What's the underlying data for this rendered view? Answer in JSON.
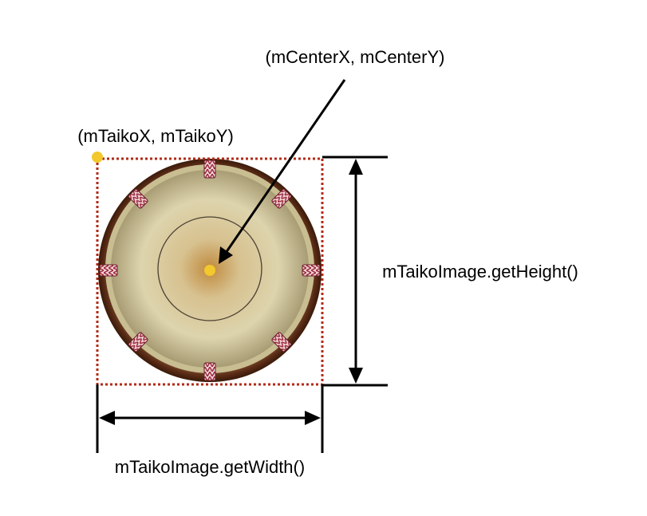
{
  "labels": {
    "center": "(mCenterX, mCenterY)",
    "origin": "(mTaikoX, mTaikoY)",
    "height": "mTaikoImage.getHeight()",
    "width": "mTaikoImage.getWidth()"
  },
  "colors": {
    "marker": "#f2c82c",
    "bounding_box": "#b22a16",
    "arrow": "#000000",
    "drum_rim": "#6e3a1c",
    "drum_head": "#d8cfa6",
    "lacing": "#d79aa3"
  },
  "drum": {
    "lacing_count": 8
  }
}
